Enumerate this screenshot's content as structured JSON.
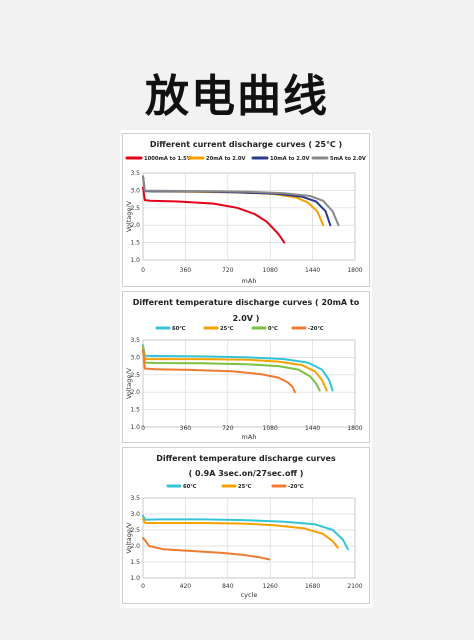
{
  "page_title": "放电曲线",
  "chart_data": [
    {
      "type": "line",
      "title_lines": [
        "Different current discharge curves ( 25℃ )"
      ],
      "xlabel": "mAh",
      "ylabel": "Voltage/V",
      "xlim": [
        0,
        1800
      ],
      "ylim": [
        1.0,
        3.5
      ],
      "xticks": [
        "0",
        "360",
        "720",
        "1080",
        "1440",
        "1800"
      ],
      "yticks": [
        "1.0",
        "1.5",
        "2.0",
        "2.5",
        "3.0",
        "3.5"
      ],
      "grid": true,
      "legend_position": "top",
      "series": [
        {
          "name": "1000mA to 1.5V",
          "color": "#e3001b",
          "points": [
            [
              0,
              3.08
            ],
            [
              15,
              2.72
            ],
            [
              60,
              2.7
            ],
            [
              300,
              2.68
            ],
            [
              600,
              2.62
            ],
            [
              800,
              2.5
            ],
            [
              950,
              2.32
            ],
            [
              1050,
              2.1
            ],
            [
              1150,
              1.75
            ],
            [
              1200,
              1.5
            ]
          ]
        },
        {
          "name": "20mA to 2.0V",
          "color": "#f5a100",
          "points": [
            [
              0,
              3.4
            ],
            [
              15,
              2.98
            ],
            [
              100,
              2.97
            ],
            [
              400,
              2.96
            ],
            [
              800,
              2.94
            ],
            [
              1100,
              2.9
            ],
            [
              1300,
              2.8
            ],
            [
              1400,
              2.65
            ],
            [
              1480,
              2.4
            ],
            [
              1530,
              2.0
            ]
          ]
        },
        {
          "name": "10mA to 2.0V",
          "color": "#2b3a8e",
          "points": [
            [
              0,
              3.4
            ],
            [
              15,
              2.98
            ],
            [
              100,
              2.97
            ],
            [
              450,
              2.97
            ],
            [
              850,
              2.94
            ],
            [
              1150,
              2.9
            ],
            [
              1350,
              2.82
            ],
            [
              1470,
              2.68
            ],
            [
              1550,
              2.4
            ],
            [
              1590,
              2.0
            ]
          ]
        },
        {
          "name": "5mA to 2.0V",
          "color": "#8a8a8a",
          "points": [
            [
              0,
              3.4
            ],
            [
              15,
              2.99
            ],
            [
              100,
              2.99
            ],
            [
              500,
              2.98
            ],
            [
              900,
              2.96
            ],
            [
              1200,
              2.92
            ],
            [
              1420,
              2.84
            ],
            [
              1530,
              2.7
            ],
            [
              1610,
              2.4
            ],
            [
              1660,
              2.0
            ]
          ]
        }
      ]
    },
    {
      "type": "line",
      "title_lines": [
        "Different temperature discharge curves ( 20mA to",
        "2.0V )"
      ],
      "xlabel": "mAh",
      "ylabel": "Voltage/V",
      "xlim": [
        0,
        1800
      ],
      "ylim": [
        1.0,
        3.5
      ],
      "xticks": [
        "0",
        "360",
        "720",
        "1080",
        "1440",
        "1800"
      ],
      "yticks": [
        "1.0",
        "1.5",
        "2.0",
        "2.5",
        "3.0",
        "3.5"
      ],
      "grid": true,
      "legend_position": "top",
      "series": [
        {
          "name": "60℃",
          "color": "#35c4d6",
          "points": [
            [
              0,
              3.35
            ],
            [
              15,
              3.05
            ],
            [
              100,
              3.04
            ],
            [
              500,
              3.03
            ],
            [
              900,
              3.0
            ],
            [
              1200,
              2.95
            ],
            [
              1400,
              2.85
            ],
            [
              1520,
              2.65
            ],
            [
              1580,
              2.35
            ],
            [
              1610,
              2.05
            ]
          ]
        },
        {
          "name": "25℃",
          "color": "#f5a100",
          "points": [
            [
              0,
              3.3
            ],
            [
              15,
              2.95
            ],
            [
              100,
              2.95
            ],
            [
              500,
              2.95
            ],
            [
              900,
              2.93
            ],
            [
              1150,
              2.88
            ],
            [
              1350,
              2.78
            ],
            [
              1460,
              2.6
            ],
            [
              1520,
              2.35
            ],
            [
              1560,
              2.05
            ]
          ]
        },
        {
          "name": "0℃",
          "color": "#7cc242",
          "points": [
            [
              0,
              3.25
            ],
            [
              15,
              2.85
            ],
            [
              100,
              2.84
            ],
            [
              500,
              2.83
            ],
            [
              900,
              2.8
            ],
            [
              1150,
              2.75
            ],
            [
              1320,
              2.65
            ],
            [
              1420,
              2.45
            ],
            [
              1470,
              2.25
            ],
            [
              1500,
              2.05
            ]
          ]
        },
        {
          "name": "-20℃",
          "color": "#f07a30",
          "points": [
            [
              0,
              3.2
            ],
            [
              15,
              2.68
            ],
            [
              100,
              2.66
            ],
            [
              400,
              2.64
            ],
            [
              750,
              2.6
            ],
            [
              1000,
              2.52
            ],
            [
              1150,
              2.42
            ],
            [
              1230,
              2.28
            ],
            [
              1270,
              2.15
            ],
            [
              1290,
              2.0
            ]
          ]
        }
      ]
    },
    {
      "type": "line",
      "title_lines": [
        "Different temperature discharge curves",
        "( 0.9A 3sec.on/27sec.off )"
      ],
      "xlabel": "cycle",
      "ylabel": "Voltage/V",
      "xlim": [
        0,
        2100
      ],
      "ylim": [
        1.0,
        3.5
      ],
      "xticks": [
        "0",
        "420",
        "840",
        "1260",
        "1680",
        "2100"
      ],
      "yticks": [
        "1.0",
        "1.5",
        "2.0",
        "2.5",
        "3.0",
        "3.5"
      ],
      "grid": true,
      "legend_position": "top",
      "series": [
        {
          "name": "60℃",
          "color": "#35c4d6",
          "points": [
            [
              0,
              2.95
            ],
            [
              20,
              2.82
            ],
            [
              150,
              2.83
            ],
            [
              600,
              2.83
            ],
            [
              1000,
              2.81
            ],
            [
              1400,
              2.76
            ],
            [
              1700,
              2.68
            ],
            [
              1880,
              2.5
            ],
            [
              1980,
              2.2
            ],
            [
              2030,
              1.9
            ]
          ]
        },
        {
          "name": "25℃",
          "color": "#f5a100",
          "points": [
            [
              0,
              2.85
            ],
            [
              20,
              2.72
            ],
            [
              150,
              2.72
            ],
            [
              600,
              2.72
            ],
            [
              1000,
              2.7
            ],
            [
              1300,
              2.65
            ],
            [
              1600,
              2.55
            ],
            [
              1780,
              2.38
            ],
            [
              1880,
              2.15
            ],
            [
              1930,
              1.95
            ]
          ]
        },
        {
          "name": "-20℃",
          "color": "#f07a30",
          "points": [
            [
              0,
              2.25
            ],
            [
              15,
              2.2
            ],
            [
              60,
              2.0
            ],
            [
              200,
              1.9
            ],
            [
              500,
              1.84
            ],
            [
              800,
              1.78
            ],
            [
              1000,
              1.72
            ],
            [
              1150,
              1.65
            ],
            [
              1250,
              1.58
            ]
          ]
        }
      ]
    }
  ]
}
